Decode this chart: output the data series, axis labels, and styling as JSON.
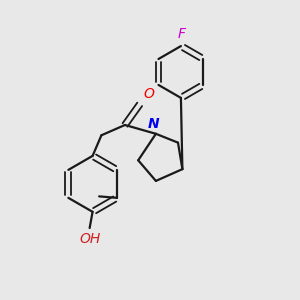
{
  "background_color": "#e8e8e8",
  "bond_color": "#1a1a1a",
  "atom_colors": {
    "F": "#cc00cc",
    "N": "#0000ee",
    "O_carbonyl": "#ee0000",
    "O_hydroxyl": "#cc2222",
    "C": "#1a1a1a"
  },
  "figsize": [
    3.0,
    3.0
  ],
  "dpi": 100
}
